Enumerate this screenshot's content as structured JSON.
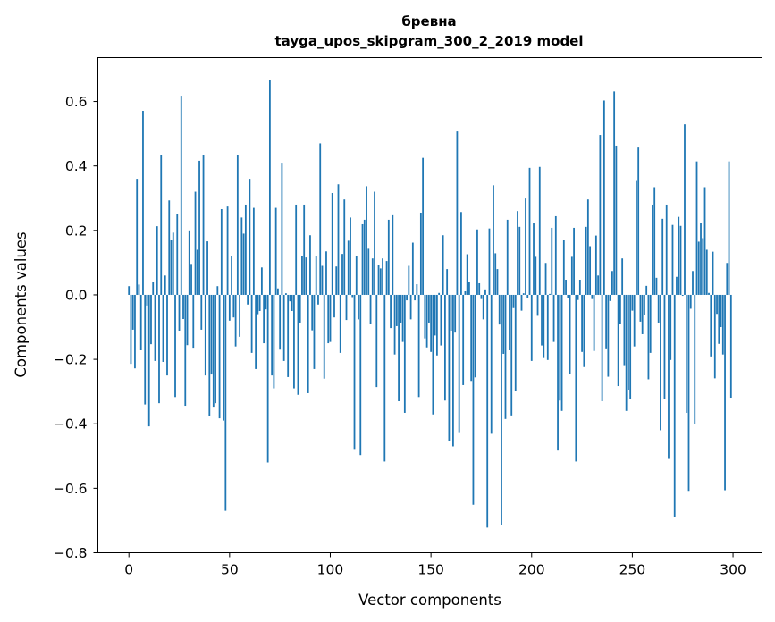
{
  "chart_data": {
    "type": "bar",
    "title": "бревна",
    "subtitle": "tayga_upos_skipgram_300_2_2019 model",
    "xlabel": "Vector components",
    "ylabel": "Components values",
    "xlim": [
      -15.4,
      314.4
    ],
    "ylim": [
      -0.8,
      0.736
    ],
    "xticks": [
      0,
      50,
      100,
      150,
      200,
      250,
      300
    ],
    "xtick_labels": [
      "0",
      "50",
      "100",
      "150",
      "200",
      "250",
      "300"
    ],
    "yticks": [
      -0.8,
      -0.6,
      -0.4,
      -0.2,
      0.0,
      0.2,
      0.4,
      0.6
    ],
    "ytick_labels": [
      "−0.8",
      "−0.6",
      "−0.4",
      "−0.2",
      "0.0",
      "0.2",
      "0.4",
      "0.6"
    ],
    "grid": false,
    "color": "#1f77b4",
    "values": [
      0.027,
      -0.214,
      -0.108,
      -0.228,
      0.36,
      0.032,
      -0.172,
      0.571,
      -0.34,
      -0.033,
      -0.408,
      -0.153,
      0.04,
      -0.205,
      0.213,
      -0.336,
      0.435,
      -0.208,
      0.06,
      -0.25,
      0.293,
      0.171,
      0.193,
      -0.317,
      0.252,
      -0.111,
      0.618,
      -0.075,
      -0.344,
      -0.156,
      0.2,
      0.096,
      -0.164,
      0.32,
      0.14,
      0.416,
      -0.108,
      0.435,
      -0.25,
      0.166,
      -0.375,
      -0.247,
      -0.347,
      -0.336,
      0.027,
      -0.383,
      0.266,
      -0.39,
      -0.67,
      0.274,
      -0.08,
      0.12,
      -0.07,
      -0.16,
      0.435,
      -0.13,
      0.24,
      0.19,
      0.28,
      -0.03,
      0.36,
      -0.18,
      0.27,
      -0.23,
      -0.06,
      -0.05,
      0.085,
      -0.15,
      -0.045,
      -0.52,
      0.666,
      -0.25,
      -0.29,
      0.27,
      0.02,
      -0.17,
      0.41,
      -0.205,
      0.005,
      -0.255,
      -0.02,
      -0.05,
      -0.29,
      0.28,
      -0.31,
      -0.086,
      0.12,
      0.28,
      0.116,
      -0.305,
      0.185,
      -0.11,
      -0.23,
      0.12,
      -0.03,
      0.47,
      0.09,
      -0.26,
      0.135,
      -0.15,
      -0.146,
      0.316,
      -0.07,
      0.088,
      0.343,
      -0.18,
      0.127,
      0.296,
      -0.078,
      0.168,
      0.24,
      -0.007,
      -0.478,
      0.121,
      -0.076,
      -0.497,
      0.219,
      0.233,
      0.337,
      0.143,
      -0.089,
      0.113,
      0.32,
      -0.286,
      0.094,
      0.082,
      0.113,
      -0.517,
      0.105,
      0.233,
      -0.103,
      0.247,
      -0.185,
      -0.097,
      -0.33,
      -0.086,
      -0.146,
      -0.366,
      -0.017,
      0.09,
      -0.076,
      0.162,
      -0.017,
      0.033,
      -0.317,
      0.255,
      0.425,
      -0.135,
      -0.163,
      -0.086,
      -0.177,
      -0.371,
      -0.126,
      -0.188,
      0.006,
      -0.157,
      0.185,
      -0.328,
      0.08,
      -0.454,
      -0.111,
      -0.47,
      -0.117,
      0.507,
      -0.426,
      0.257,
      -0.28,
      0.011,
      0.126,
      0.039,
      -0.267,
      -0.651,
      -0.256,
      0.203,
      0.036,
      -0.013,
      -0.076,
      0.017,
      -0.722,
      0.206,
      -0.431,
      0.34,
      0.129,
      0.08,
      -0.092,
      -0.714,
      -0.183,
      -0.385,
      0.233,
      -0.172,
      -0.374,
      -0.041,
      -0.297,
      0.26,
      0.211,
      -0.049,
      0.005,
      0.299,
      -0.01,
      0.394,
      -0.205,
      0.222,
      0.118,
      -0.065,
      0.397,
      -0.157,
      -0.196,
      0.099,
      -0.202,
      0.003,
      0.208,
      -0.146,
      0.244,
      -0.483,
      -0.328,
      -0.36,
      0.17,
      0.047,
      -0.01,
      -0.245,
      0.118,
      0.208,
      -0.517,
      -0.016,
      0.047,
      -0.177,
      -0.224,
      0.211,
      0.296,
      0.151,
      -0.013,
      -0.174,
      0.184,
      0.06,
      0.496,
      -0.33,
      0.603,
      -0.166,
      -0.254,
      -0.019,
      0.074,
      0.631,
      0.463,
      -0.283,
      -0.089,
      0.113,
      -0.218,
      -0.36,
      -0.294,
      -0.322,
      -0.049,
      -0.16,
      0.356,
      0.457,
      -0.083,
      -0.122,
      -0.062,
      0.028,
      -0.262,
      -0.18,
      0.28,
      0.334,
      0.053,
      -0.086,
      -0.42,
      0.236,
      -0.322,
      0.28,
      -0.509,
      -0.202,
      0.217,
      -0.689,
      0.056,
      0.242,
      0.214,
      -0.003,
      0.529,
      -0.366,
      -0.608,
      -0.043,
      0.074,
      -0.4,
      0.414,
      0.165,
      0.222,
      0.176,
      0.334,
      0.14,
      0.006,
      -0.191,
      0.134,
      -0.259,
      -0.059,
      -0.152,
      -0.1,
      -0.185,
      -0.606,
      0.099,
      0.414,
      -0.319
    ]
  }
}
